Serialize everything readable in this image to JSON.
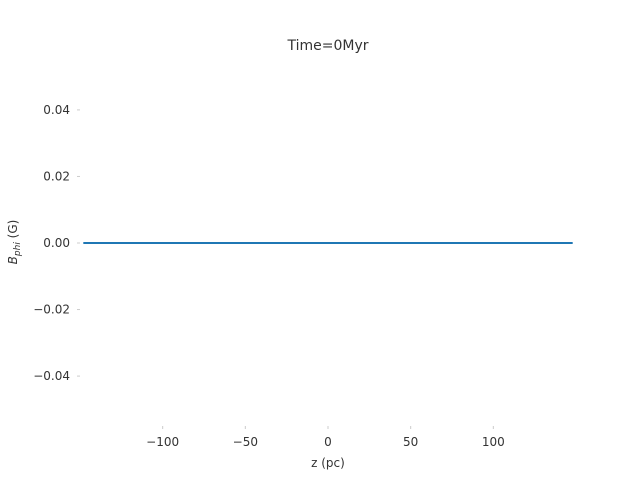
{
  "chart_data": {
    "type": "line",
    "title": "Time=0Myr",
    "xlabel": "z (pc)",
    "ylabel_main": "B",
    "ylabel_sub": "phi",
    "ylabel_unit": " (G)",
    "xlim": [
      -150,
      150
    ],
    "ylim": [
      -0.055,
      0.055
    ],
    "xticks": [
      -100,
      -50,
      0,
      50,
      100
    ],
    "xtick_labels": [
      "−100",
      "−50",
      "0",
      "50",
      "100"
    ],
    "yticks": [
      0.04,
      0.02,
      0.0,
      -0.02,
      -0.04
    ],
    "ytick_labels": [
      "0.04",
      "0.02",
      "0.00",
      "−0.02",
      "−0.04"
    ],
    "grid": false,
    "series": [
      {
        "color": "#1f77b4",
        "x": [
          -148,
          148
        ],
        "y": [
          0,
          0
        ]
      }
    ]
  }
}
